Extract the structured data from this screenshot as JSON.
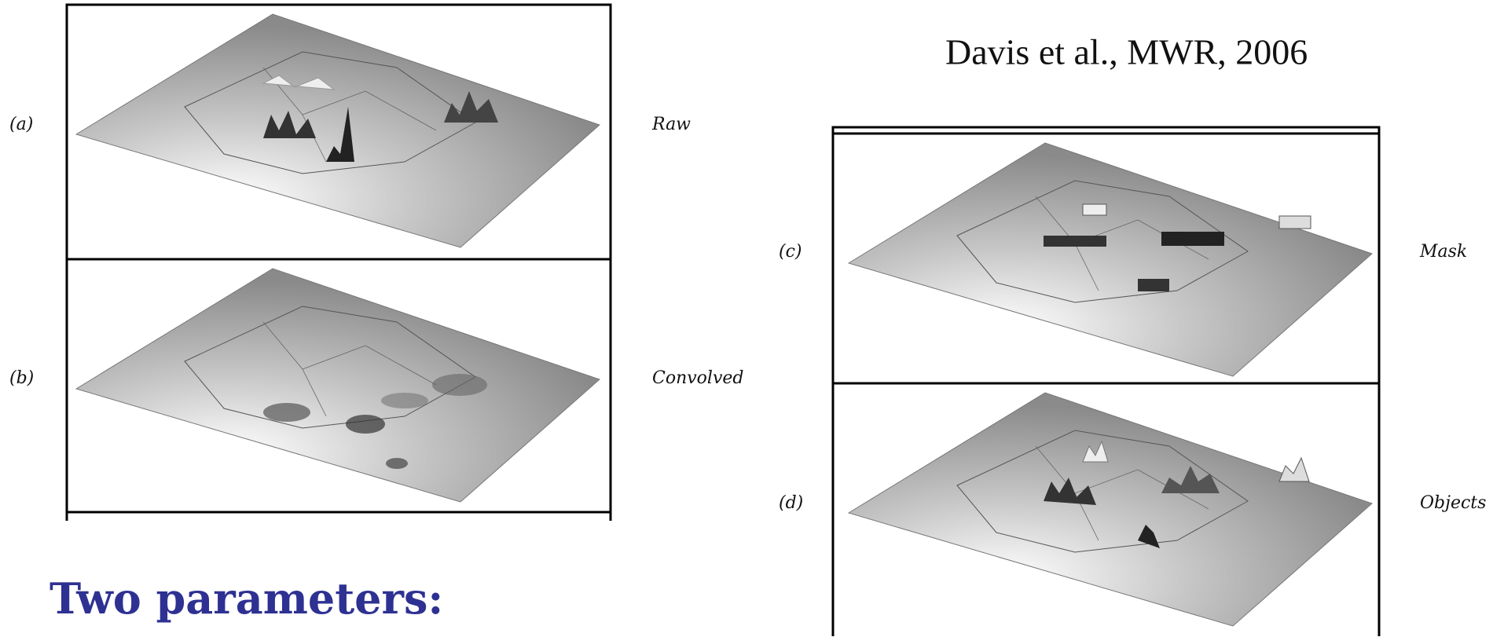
{
  "citation": "Davis et al., MWR, 2006",
  "heading": "Two parameters:",
  "panels": [
    {
      "tag": "(a)",
      "name": "Raw"
    },
    {
      "tag": "(b)",
      "name": "Convolved"
    },
    {
      "tag": "(c)",
      "name": "Mask"
    },
    {
      "tag": "(d)",
      "name": "Objects"
    }
  ]
}
